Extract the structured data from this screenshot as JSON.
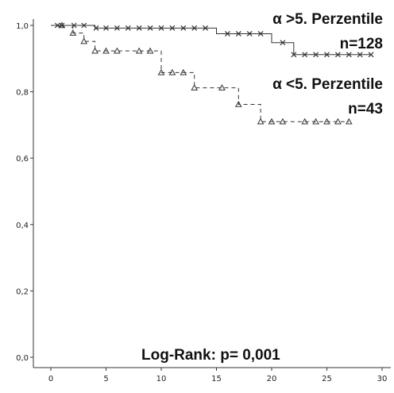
{
  "chart_data": {
    "type": "line",
    "subtype": "kaplan-meier",
    "xlim": [
      -2,
      30
    ],
    "ylim": [
      0,
      1.0
    ],
    "x_ticks": [
      0,
      5,
      10,
      15,
      20,
      25,
      30
    ],
    "x_tick_labels": [
      "0",
      "5",
      "10",
      "15",
      "20",
      "25",
      "30"
    ],
    "y_ticks": [
      0,
      0.2,
      0.4,
      0.6,
      0.8,
      1.0
    ],
    "y_tick_labels": [
      "0,0",
      "0,2",
      "0,4",
      "0,6",
      "0,8",
      "1,0"
    ],
    "grid": false,
    "series": [
      {
        "name": "α >5. Perzentile",
        "n_label": "n=128",
        "line_style": "solid",
        "marker": "x",
        "color": "#333333",
        "steps": [
          [
            0,
            1.0
          ],
          [
            4,
            0.992
          ],
          [
            15,
            0.975
          ],
          [
            20,
            0.948
          ],
          [
            22,
            0.912
          ],
          [
            29,
            0.912
          ]
        ],
        "censored": [
          [
            0.6,
            1.0
          ],
          [
            1.0,
            1.0
          ],
          [
            2.1,
            1.0
          ],
          [
            3.0,
            1.0
          ],
          [
            4.1,
            0.992
          ],
          [
            5.0,
            0.992
          ],
          [
            6.0,
            0.992
          ],
          [
            7.0,
            0.992
          ],
          [
            8.0,
            0.992
          ],
          [
            9.0,
            0.992
          ],
          [
            10.0,
            0.992
          ],
          [
            11.0,
            0.992
          ],
          [
            12.0,
            0.992
          ],
          [
            13.0,
            0.992
          ],
          [
            14.0,
            0.992
          ],
          [
            16.0,
            0.975
          ],
          [
            17.0,
            0.975
          ],
          [
            18.0,
            0.975
          ],
          [
            19.0,
            0.975
          ],
          [
            21.0,
            0.948
          ],
          [
            22.0,
            0.912
          ],
          [
            23.0,
            0.912
          ],
          [
            24.0,
            0.912
          ],
          [
            25.0,
            0.912
          ],
          [
            26.0,
            0.912
          ],
          [
            27.0,
            0.912
          ],
          [
            28.0,
            0.912
          ],
          [
            29.0,
            0.912
          ]
        ]
      },
      {
        "name": "α <5. Perzentile",
        "n_label": "n=43",
        "line_style": "dashed",
        "marker": "triangle",
        "color": "#333333",
        "steps": [
          [
            0,
            1.0
          ],
          [
            2,
            0.977
          ],
          [
            3,
            0.952
          ],
          [
            4,
            0.923
          ],
          [
            10,
            0.858
          ],
          [
            13,
            0.812
          ],
          [
            17,
            0.762
          ],
          [
            19,
            0.71
          ],
          [
            27,
            0.71
          ]
        ],
        "censored": [
          [
            1.0,
            1.0
          ],
          [
            2.0,
            0.977
          ],
          [
            3.0,
            0.952
          ],
          [
            4.0,
            0.923
          ],
          [
            5.0,
            0.923
          ],
          [
            6.0,
            0.923
          ],
          [
            8.0,
            0.923
          ],
          [
            9.0,
            0.923
          ],
          [
            10.0,
            0.858
          ],
          [
            11.0,
            0.858
          ],
          [
            12.0,
            0.858
          ],
          [
            13.0,
            0.812
          ],
          [
            15.5,
            0.812
          ],
          [
            17.0,
            0.762
          ],
          [
            19.0,
            0.71
          ],
          [
            20.0,
            0.71
          ],
          [
            21.0,
            0.71
          ],
          [
            23.0,
            0.71
          ],
          [
            24.0,
            0.71
          ],
          [
            25.0,
            0.71
          ],
          [
            26.0,
            0.71
          ],
          [
            27.0,
            0.71
          ]
        ]
      }
    ],
    "annotations": {
      "test_label": "Log-Rank: p= 0,001"
    }
  }
}
